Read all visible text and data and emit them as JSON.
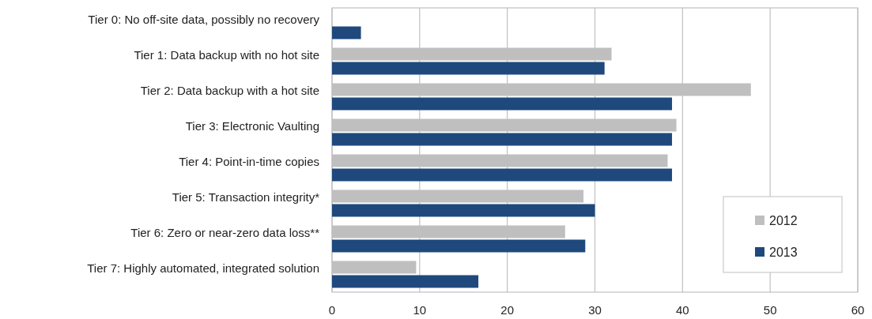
{
  "chart_data": {
    "type": "bar",
    "orientation": "horizontal",
    "categories": [
      "Tier 0: No off-site data, possibly no recovery",
      "Tier 1: Data backup with no hot site",
      "Tier 2: Data backup with a hot site",
      "Tier 3: Electronic Vaulting",
      "Tier 4: Point-in-time copies",
      "Tier 5: Transaction integrity*",
      "Tier 6: Zero or near-zero data loss**",
      "Tier 7: Highly automated, integrated solution"
    ],
    "series": [
      {
        "name": "2012",
        "color": "#bfbfbf",
        "values": [
          null,
          31.9,
          47.8,
          39.3,
          38.3,
          28.7,
          26.6,
          9.6
        ]
      },
      {
        "name": "2013",
        "color": "#1f497d",
        "values": [
          3.3,
          31.1,
          38.8,
          38.8,
          38.8,
          30.0,
          28.9,
          16.7
        ]
      }
    ],
    "xlim": [
      0,
      60
    ],
    "xticks": [
      0,
      10,
      20,
      30,
      40,
      50,
      60
    ],
    "grid": "x",
    "legend": "bottom right"
  }
}
